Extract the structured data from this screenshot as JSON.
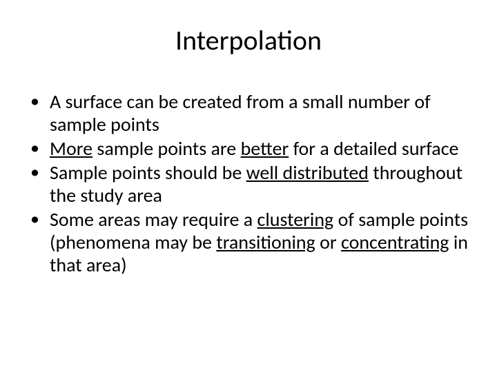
{
  "slide": {
    "title": "Interpolation",
    "background_color": "#ffffff",
    "text_color": "#000000",
    "title_fontsize": 40,
    "body_fontsize": 28,
    "font_family": "Calibri",
    "bullets": [
      {
        "segments": [
          {
            "text": "A surface can be created from a small number of sample points",
            "underline": false
          }
        ]
      },
      {
        "segments": [
          {
            "text": "More",
            "underline": true
          },
          {
            "text": " sample points are ",
            "underline": false
          },
          {
            "text": "better",
            "underline": true
          },
          {
            "text": " for a detailed surface",
            "underline": false
          }
        ]
      },
      {
        "segments": [
          {
            "text": "Sample points should be ",
            "underline": false
          },
          {
            "text": "well distributed",
            "underline": true
          },
          {
            "text": " throughout the study area",
            "underline": false
          }
        ]
      },
      {
        "segments": [
          {
            "text": "Some areas may require a ",
            "underline": false
          },
          {
            "text": "clustering",
            "underline": true
          },
          {
            "text": " of sample points (phenomena may be ",
            "underline": false
          },
          {
            "text": "transitioning",
            "underline": true
          },
          {
            "text": " or ",
            "underline": false
          },
          {
            "text": "concentrating",
            "underline": true
          },
          {
            "text": " in that area)",
            "underline": false
          }
        ]
      }
    ]
  }
}
